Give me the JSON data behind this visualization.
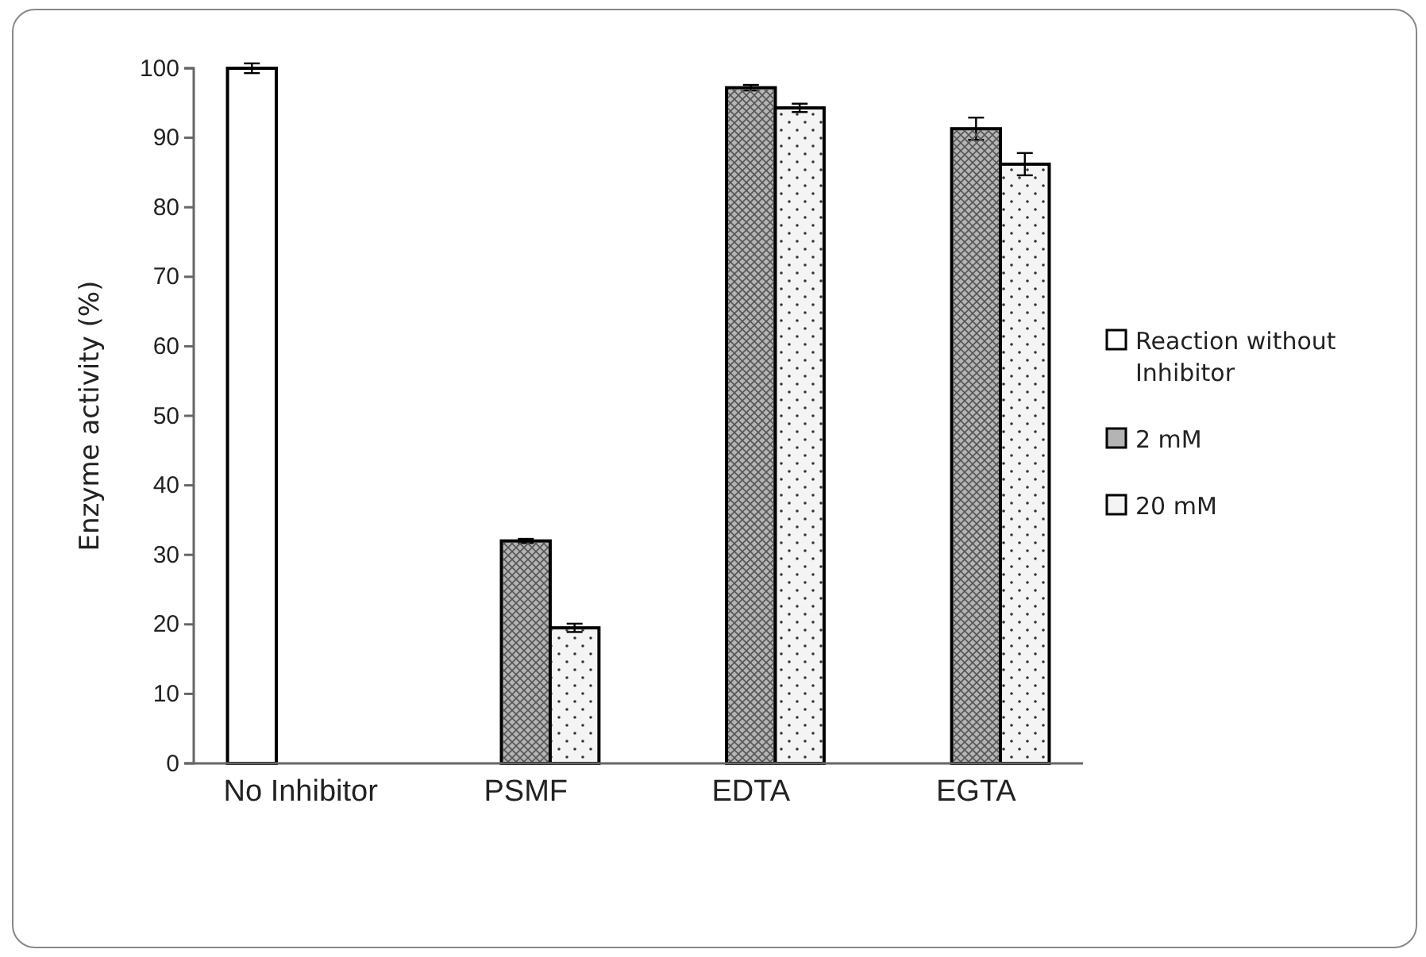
{
  "chart_data": {
    "type": "bar",
    "ylabel": "Enzyme activity (%)",
    "categories": [
      "No Inhibitor",
      "PSMF",
      "EDTA",
      "EGTA"
    ],
    "series": [
      {
        "name": "Reaction without Inhibitor",
        "color": "#ffffff",
        "values": [
          100,
          null,
          null,
          null
        ],
        "errors": [
          0.7,
          null,
          null,
          null
        ]
      },
      {
        "name": "2 mM",
        "color": "#b4b4b4",
        "values": [
          null,
          32,
          97.2,
          91.3
        ],
        "errors": [
          null,
          0.3,
          0.4,
          1.6
        ]
      },
      {
        "name": "20 mM",
        "color": "#f4f4f4",
        "values": [
          null,
          19.5,
          94.3,
          86.2
        ],
        "errors": [
          null,
          0.6,
          0.6,
          1.6
        ]
      }
    ],
    "ylim": [
      0,
      100
    ],
    "yticks": [
      0,
      10,
      20,
      30,
      40,
      50,
      60,
      70,
      80,
      90,
      100
    ],
    "grid": false,
    "legend": "right"
  }
}
